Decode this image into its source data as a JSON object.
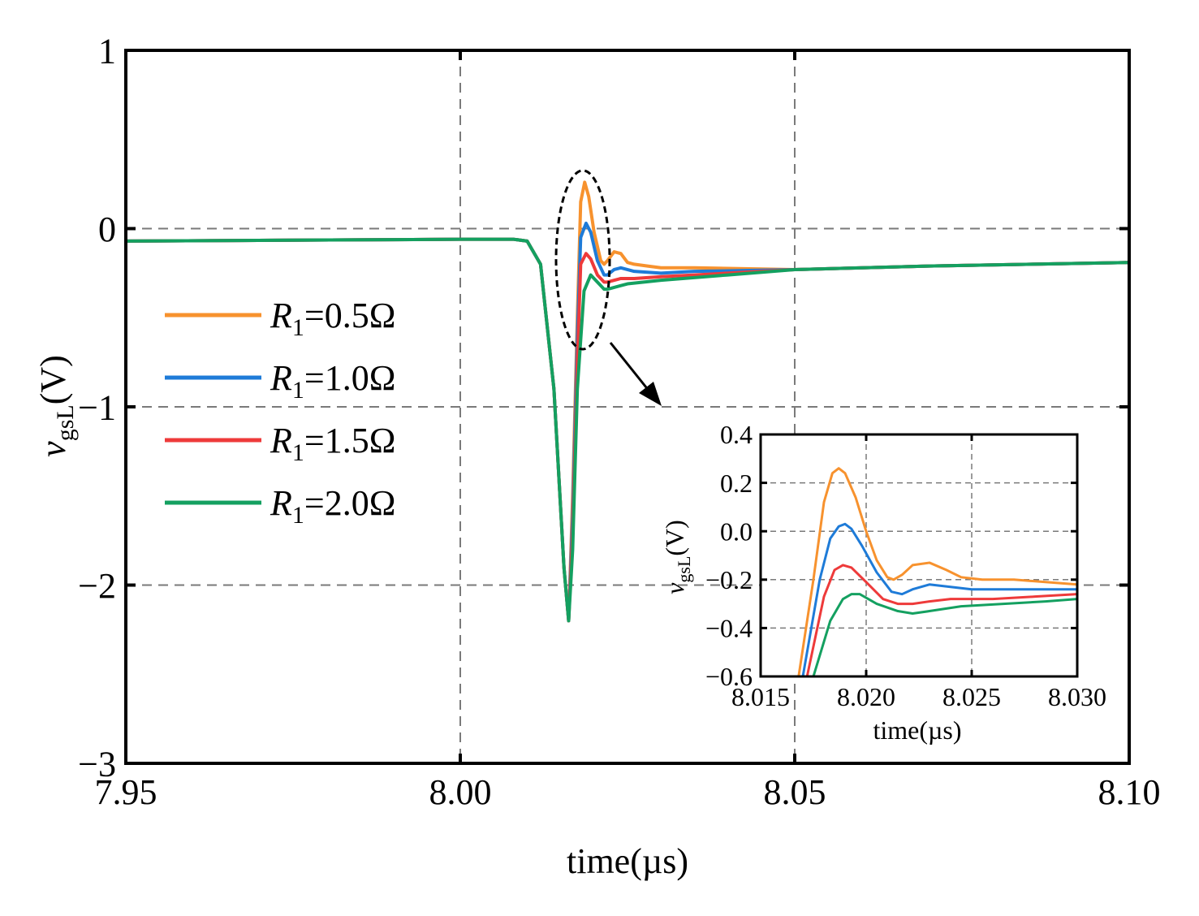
{
  "chart_data": [
    {
      "type": "line",
      "title": "",
      "xlabel": "time(µs)",
      "ylabel": {
        "main": "v",
        "sub": "gsL",
        "unit": "(V)"
      },
      "xlim": [
        7.95,
        8.1
      ],
      "ylim": [
        -3,
        1
      ],
      "xticks": [
        7.95,
        8.0,
        8.05,
        8.1
      ],
      "xtick_labels": [
        "7.95",
        "8.00",
        "8.05",
        "8.10"
      ],
      "yticks": [
        -3,
        -2,
        -1,
        0,
        1
      ],
      "ytick_labels": [
        "−3",
        "−2",
        "−1",
        "0",
        "1"
      ],
      "grid": true,
      "legend": "center-left",
      "series": [
        {
          "name": "R1=0.5Ω",
          "label_main": "R",
          "label_sub": "1",
          "label_rest": "=0.5Ω",
          "color": "#f7922e",
          "points": [
            [
              7.95,
              -0.07
            ],
            [
              8.0,
              -0.06
            ],
            [
              8.008,
              -0.06
            ],
            [
              8.01,
              -0.07
            ],
            [
              8.012,
              -0.2
            ],
            [
              8.014,
              -0.9
            ],
            [
              8.0155,
              -1.9
            ],
            [
              8.0162,
              -2.2
            ],
            [
              8.0168,
              -1.5
            ],
            [
              8.0175,
              -0.5
            ],
            [
              8.018,
              0.15
            ],
            [
              8.0186,
              0.26
            ],
            [
              8.0192,
              0.18
            ],
            [
              8.02,
              -0.02
            ],
            [
              8.021,
              -0.18
            ],
            [
              8.0215,
              -0.2
            ],
            [
              8.022,
              -0.18
            ],
            [
              8.023,
              -0.13
            ],
            [
              8.024,
              -0.14
            ],
            [
              8.025,
              -0.19
            ],
            [
              8.026,
              -0.2
            ],
            [
              8.028,
              -0.21
            ],
            [
              8.03,
              -0.22
            ],
            [
              8.035,
              -0.22
            ],
            [
              8.05,
              -0.23
            ],
            [
              8.07,
              -0.21
            ],
            [
              8.1,
              -0.19
            ]
          ]
        },
        {
          "name": "R1=1.0Ω",
          "label_main": "R",
          "label_sub": "1",
          "label_rest": "=1.0Ω",
          "color": "#1e7bd8",
          "points": [
            [
              7.95,
              -0.07
            ],
            [
              8.0,
              -0.06
            ],
            [
              8.008,
              -0.06
            ],
            [
              8.01,
              -0.07
            ],
            [
              8.012,
              -0.2
            ],
            [
              8.014,
              -0.9
            ],
            [
              8.0155,
              -1.9
            ],
            [
              8.0162,
              -2.2
            ],
            [
              8.0168,
              -1.6
            ],
            [
              8.0175,
              -0.6
            ],
            [
              8.018,
              -0.05
            ],
            [
              8.0188,
              0.03
            ],
            [
              8.0195,
              -0.02
            ],
            [
              8.0205,
              -0.18
            ],
            [
              8.0215,
              -0.26
            ],
            [
              8.022,
              -0.26
            ],
            [
              8.023,
              -0.23
            ],
            [
              8.024,
              -0.22
            ],
            [
              8.026,
              -0.24
            ],
            [
              8.03,
              -0.25
            ],
            [
              8.035,
              -0.24
            ],
            [
              8.05,
              -0.23
            ],
            [
              8.07,
              -0.21
            ],
            [
              8.1,
              -0.19
            ]
          ]
        },
        {
          "name": "R1=1.5Ω",
          "label_main": "R",
          "label_sub": "1",
          "label_rest": "=1.5Ω",
          "color": "#ee3a3a",
          "points": [
            [
              7.95,
              -0.07
            ],
            [
              8.0,
              -0.06
            ],
            [
              8.008,
              -0.06
            ],
            [
              8.01,
              -0.07
            ],
            [
              8.012,
              -0.2
            ],
            [
              8.014,
              -0.9
            ],
            [
              8.0155,
              -1.9
            ],
            [
              8.0162,
              -2.2
            ],
            [
              8.0168,
              -1.7
            ],
            [
              8.0175,
              -0.75
            ],
            [
              8.018,
              -0.2
            ],
            [
              8.0188,
              -0.14
            ],
            [
              8.0195,
              -0.17
            ],
            [
              8.0205,
              -0.26
            ],
            [
              8.0215,
              -0.3
            ],
            [
              8.022,
              -0.3
            ],
            [
              8.024,
              -0.28
            ],
            [
              8.026,
              -0.28
            ],
            [
              8.03,
              -0.27
            ],
            [
              8.035,
              -0.26
            ],
            [
              8.05,
              -0.23
            ],
            [
              8.07,
              -0.21
            ],
            [
              8.1,
              -0.19
            ]
          ]
        },
        {
          "name": "R1=2.0Ω",
          "label_main": "R",
          "label_sub": "1",
          "label_rest": "=2.0Ω",
          "color": "#14a060",
          "points": [
            [
              7.95,
              -0.07
            ],
            [
              8.0,
              -0.06
            ],
            [
              8.008,
              -0.06
            ],
            [
              8.01,
              -0.07
            ],
            [
              8.012,
              -0.2
            ],
            [
              8.014,
              -0.9
            ],
            [
              8.0155,
              -1.9
            ],
            [
              8.0162,
              -2.2
            ],
            [
              8.0168,
              -1.8
            ],
            [
              8.0175,
              -0.9
            ],
            [
              8.0185,
              -0.35
            ],
            [
              8.0195,
              -0.26
            ],
            [
              8.0205,
              -0.3
            ],
            [
              8.0215,
              -0.34
            ],
            [
              8.022,
              -0.34
            ],
            [
              8.025,
              -0.31
            ],
            [
              8.03,
              -0.29
            ],
            [
              8.04,
              -0.26
            ],
            [
              8.05,
              -0.23
            ],
            [
              8.07,
              -0.21
            ],
            [
              8.1,
              -0.19
            ]
          ]
        }
      ]
    },
    {
      "type": "line",
      "title": "",
      "xlabel": "time(µs)",
      "ylabel": {
        "main": "v",
        "sub": "gsL",
        "unit": "(V)"
      },
      "xlim": [
        8.015,
        8.03
      ],
      "ylim": [
        -0.6,
        0.4
      ],
      "xticks": [
        8.015,
        8.02,
        8.025,
        8.03
      ],
      "xtick_labels": [
        "8.015",
        "8.020",
        "8.025",
        "8.030"
      ],
      "yticks": [
        -0.6,
        -0.4,
        -0.2,
        0.0,
        0.2,
        0.4
      ],
      "ytick_labels": [
        "−0.6",
        "−0.4",
        "−0.2",
        "0.0",
        "0.2",
        "0.4"
      ],
      "grid": true,
      "series": [
        {
          "name": "R1=0.5Ω",
          "color": "#f7922e",
          "points": [
            [
              8.0168,
              -0.6
            ],
            [
              8.0175,
              -0.2
            ],
            [
              8.018,
              0.12
            ],
            [
              8.0184,
              0.24
            ],
            [
              8.0187,
              0.26
            ],
            [
              8.019,
              0.24
            ],
            [
              8.0195,
              0.14
            ],
            [
              8.02,
              0.0
            ],
            [
              8.0205,
              -0.12
            ],
            [
              8.021,
              -0.19
            ],
            [
              8.0213,
              -0.2
            ],
            [
              8.0217,
              -0.18
            ],
            [
              8.0222,
              -0.14
            ],
            [
              8.023,
              -0.13
            ],
            [
              8.0238,
              -0.16
            ],
            [
              8.0245,
              -0.19
            ],
            [
              8.0255,
              -0.2
            ],
            [
              8.027,
              -0.2
            ],
            [
              8.0285,
              -0.21
            ],
            [
              8.03,
              -0.22
            ]
          ]
        },
        {
          "name": "R1=1.0Ω",
          "color": "#1e7bd8",
          "points": [
            [
              8.017,
              -0.6
            ],
            [
              8.0178,
              -0.2
            ],
            [
              8.0183,
              -0.03
            ],
            [
              8.0187,
              0.02
            ],
            [
              8.019,
              0.03
            ],
            [
              8.0193,
              0.01
            ],
            [
              8.0198,
              -0.06
            ],
            [
              8.0205,
              -0.17
            ],
            [
              8.0212,
              -0.25
            ],
            [
              8.0217,
              -0.26
            ],
            [
              8.0222,
              -0.24
            ],
            [
              8.023,
              -0.22
            ],
            [
              8.024,
              -0.23
            ],
            [
              8.025,
              -0.24
            ],
            [
              8.027,
              -0.24
            ],
            [
              8.03,
              -0.24
            ]
          ]
        },
        {
          "name": "R1=1.5Ω",
          "color": "#ee3a3a",
          "points": [
            [
              8.0172,
              -0.6
            ],
            [
              8.018,
              -0.27
            ],
            [
              8.0185,
              -0.16
            ],
            [
              8.0189,
              -0.14
            ],
            [
              8.0193,
              -0.15
            ],
            [
              8.02,
              -0.21
            ],
            [
              8.0208,
              -0.28
            ],
            [
              8.0215,
              -0.3
            ],
            [
              8.0222,
              -0.3
            ],
            [
              8.023,
              -0.29
            ],
            [
              8.024,
              -0.28
            ],
            [
              8.026,
              -0.28
            ],
            [
              8.028,
              -0.27
            ],
            [
              8.03,
              -0.26
            ]
          ]
        },
        {
          "name": "R1=2.0Ω",
          "color": "#14a060",
          "points": [
            [
              8.0175,
              -0.6
            ],
            [
              8.0183,
              -0.37
            ],
            [
              8.0189,
              -0.28
            ],
            [
              8.0193,
              -0.26
            ],
            [
              8.0197,
              -0.26
            ],
            [
              8.0205,
              -0.3
            ],
            [
              8.0215,
              -0.33
            ],
            [
              8.0222,
              -0.34
            ],
            [
              8.023,
              -0.33
            ],
            [
              8.0245,
              -0.31
            ],
            [
              8.0265,
              -0.3
            ],
            [
              8.0285,
              -0.29
            ],
            [
              8.03,
              -0.28
            ]
          ]
        }
      ]
    }
  ]
}
